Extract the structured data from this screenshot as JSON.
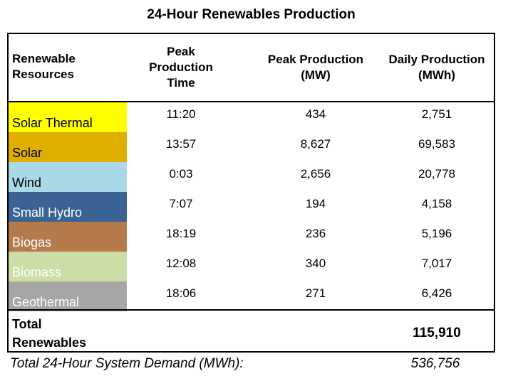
{
  "title": "24-Hour Renewables Production",
  "headers": {
    "resources": [
      "Renewable",
      "Resources"
    ],
    "time": [
      "Peak",
      "Production",
      "Time"
    ],
    "peak": [
      "Peak Production",
      "(MW)"
    ],
    "daily": [
      "Daily Production",
      "(MWh)"
    ]
  },
  "rows": [
    {
      "name": "Solar Thermal",
      "time": "11:20",
      "peak": "434",
      "daily": "2,751",
      "color": "#FFFF00",
      "text_color": "#000000"
    },
    {
      "name": "Solar",
      "time": "13:57",
      "peak": "8,627",
      "daily": "69,583",
      "color": "#DFAE00",
      "text_color": "#000000"
    },
    {
      "name": "Wind",
      "time": "0:03",
      "peak": "2,656",
      "daily": "20,778",
      "color": "#A9D9E6",
      "text_color": "#000000"
    },
    {
      "name": "Small Hydro",
      "time": "7:07",
      "peak": "194",
      "daily": "4,158",
      "color": "#3A6394",
      "text_color": "#FFFFFF"
    },
    {
      "name": "Biogas",
      "time": "18:19",
      "peak": "236",
      "daily": "5,196",
      "color": "#B57A4C",
      "text_color": "#FFFFFF"
    },
    {
      "name": "Biomass",
      "time": "12:08",
      "peak": "340",
      "daily": "7,017",
      "color": "#CCDDA5",
      "text_color": "#FFFFFF"
    },
    {
      "name": "Geothermal",
      "time": "18:06",
      "peak": "271",
      "daily": "6,426",
      "color": "#A6A6A6",
      "text_color": "#FFFFFF"
    }
  ],
  "total": {
    "label": [
      "Total",
      "Renewables"
    ],
    "value": "115,910"
  },
  "footer": {
    "label": "Total 24-Hour System Demand (MWh):",
    "value": "536,756"
  }
}
